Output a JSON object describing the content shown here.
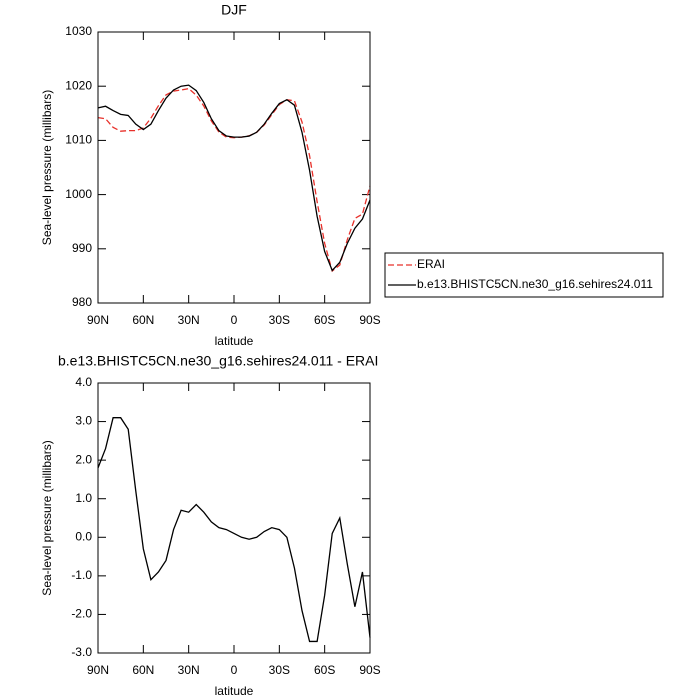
{
  "chart_data": [
    {
      "type": "line",
      "title": "DJF",
      "xlabel": "latitude",
      "ylabel": "Sea-level pressure (millibars)",
      "x": [
        90,
        85,
        80,
        75,
        70,
        65,
        60,
        55,
        50,
        45,
        40,
        35,
        30,
        25,
        20,
        15,
        10,
        5,
        0,
        -5,
        -10,
        -15,
        -20,
        -25,
        -30,
        -35,
        -40,
        -45,
        -50,
        -55,
        -60,
        -65,
        -70,
        -75,
        -80,
        -85,
        -90
      ],
      "xlim": [
        90,
        -90
      ],
      "xticks": [
        {
          "value": 90,
          "label": "90N"
        },
        {
          "value": 60,
          "label": "60N"
        },
        {
          "value": 30,
          "label": "30N"
        },
        0,
        {
          "value": -30,
          "label": "30S"
        },
        {
          "value": -60,
          "label": "60S"
        },
        {
          "value": -90,
          "label": "90S"
        }
      ],
      "ylim": [
        980,
        1030
      ],
      "yticks": [
        980,
        990,
        1000,
        1010,
        1020,
        1030
      ],
      "legend": "right",
      "series": [
        {
          "name": "ERAI",
          "color": "#e8302a",
          "dashed": true,
          "values": [
            1014.2,
            1014.0,
            1012.4,
            1011.7,
            1011.8,
            1011.8,
            1012.3,
            1014.1,
            1016.4,
            1018.4,
            1019.1,
            1019.3,
            1019.55,
            1018.35,
            1016.35,
            1013.6,
            1011.55,
            1010.6,
            1010.5,
            1010.6,
            1010.85,
            1011.5,
            1012.85,
            1014.75,
            1016.6,
            1017.5,
            1017.3,
            1013.4,
            1007.2,
            998.7,
            991.0,
            985.9,
            987.0,
            991.7,
            995.6,
            996.4,
            1001.6
          ]
        },
        {
          "name": "b.e13.BHISTC5CN.ne30_g16.sehires24.011",
          "color": "#000000",
          "dashed": false,
          "values": [
            1016.0,
            1016.3,
            1015.5,
            1014.8,
            1014.6,
            1013.0,
            1012.0,
            1013.0,
            1015.5,
            1017.8,
            1019.3,
            1020.0,
            1020.2,
            1019.2,
            1017.0,
            1014.0,
            1011.8,
            1010.8,
            1010.6,
            1010.6,
            1010.8,
            1011.5,
            1013.0,
            1015.0,
            1016.8,
            1017.5,
            1016.5,
            1011.5,
            1004.5,
            996.0,
            989.5,
            986.0,
            987.5,
            991.0,
            993.8,
            995.5,
            999.0
          ]
        }
      ]
    },
    {
      "type": "line",
      "title": "b.e13.BHISTC5CN.ne30_g16.sehires24.011 - ERAI",
      "xlabel": "latitude",
      "ylabel": "Sea-level pressure (millibars)",
      "x": [
        90,
        85,
        80,
        75,
        70,
        65,
        60,
        55,
        50,
        45,
        40,
        35,
        30,
        25,
        20,
        15,
        10,
        5,
        0,
        -5,
        -10,
        -15,
        -20,
        -25,
        -30,
        -35,
        -40,
        -45,
        -50,
        -55,
        -60,
        -65,
        -70,
        -75,
        -80,
        -85,
        -90
      ],
      "xlim": [
        90,
        -90
      ],
      "xticks": [
        {
          "value": 90,
          "label": "90N"
        },
        {
          "value": 60,
          "label": "60N"
        },
        {
          "value": 30,
          "label": "30N"
        },
        0,
        {
          "value": -30,
          "label": "30S"
        },
        {
          "value": -60,
          "label": "60S"
        },
        {
          "value": -90,
          "label": "90S"
        }
      ],
      "ylim": [
        -3,
        4
      ],
      "yticks": [
        {
          "value": -3,
          "label": "-3.0"
        },
        {
          "value": -2,
          "label": "-2.0"
        },
        {
          "value": -1,
          "label": "-1.0"
        },
        {
          "value": 0,
          "label": "0.0"
        },
        {
          "value": 1,
          "label": "1.0"
        },
        {
          "value": 2,
          "label": "2.0"
        },
        {
          "value": 3,
          "label": "3.0"
        },
        {
          "value": 4,
          "label": "4.0"
        }
      ],
      "series": [
        {
          "color": "#000000",
          "dashed": false,
          "values": [
            1.8,
            2.3,
            3.1,
            3.1,
            2.8,
            1.2,
            -0.3,
            -1.1,
            -0.9,
            -0.6,
            0.2,
            0.7,
            0.65,
            0.85,
            0.65,
            0.4,
            0.25,
            0.2,
            0.1,
            0.0,
            -0.05,
            0.0,
            0.15,
            0.25,
            0.2,
            0.0,
            -0.8,
            -1.9,
            -2.7,
            -2.7,
            -1.5,
            0.1,
            0.5,
            -0.7,
            -1.8,
            -0.9,
            -2.6
          ]
        }
      ]
    }
  ]
}
